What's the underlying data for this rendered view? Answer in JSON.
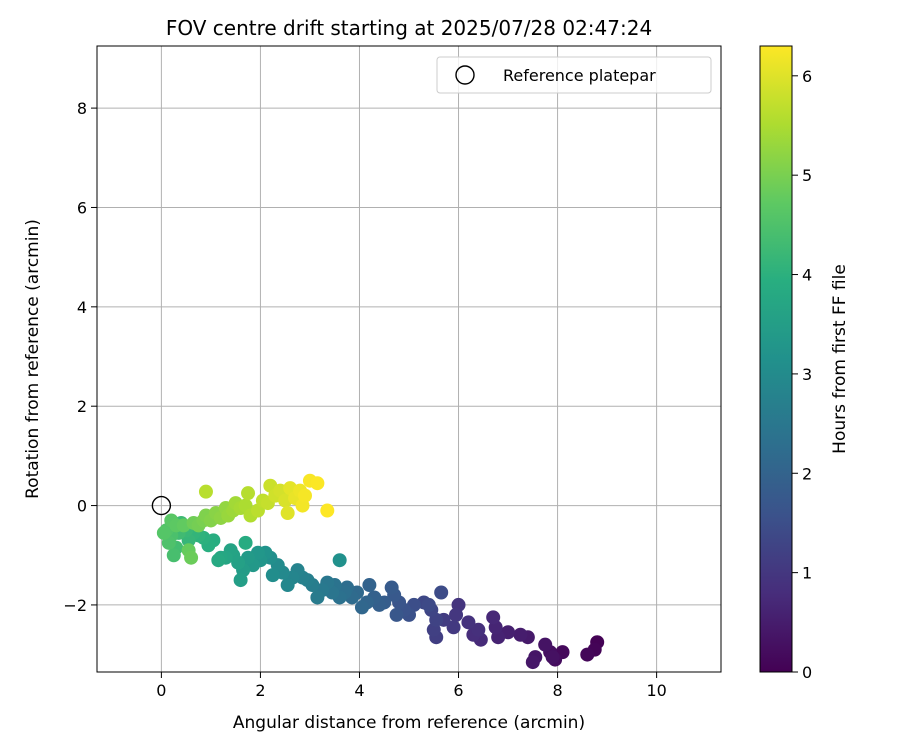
{
  "chart_data": {
    "type": "scatter",
    "title": "FOV centre drift starting at 2025/07/28 02:47:24",
    "xlabel": "Angular distance from reference (arcmin)",
    "ylabel": "Rotation from reference (arcmin)",
    "xlim": [
      -1.3,
      11.3
    ],
    "ylim": [
      -3.35,
      9.25
    ],
    "xticks": [
      0,
      2,
      4,
      6,
      8,
      10
    ],
    "xtick_labels": [
      "0",
      "2",
      "4",
      "6",
      "8",
      "10"
    ],
    "yticks": [
      -2,
      0,
      2,
      4,
      6,
      8
    ],
    "ytick_labels": [
      "−2",
      "0",
      "2",
      "4",
      "6",
      "8"
    ],
    "grid": true,
    "legend": {
      "position": "top-right",
      "entries": [
        "Reference platepar"
      ]
    },
    "reference_point": {
      "x": 0,
      "y": 0,
      "label": "Reference platepar"
    },
    "colorbar": {
      "label": "Hours from first FF file",
      "colormap": "viridis",
      "range": [
        0,
        6.3
      ],
      "ticks": [
        0,
        1,
        2,
        3,
        4,
        5,
        6
      ],
      "tick_labels": [
        "0",
        "1",
        "2",
        "3",
        "4",
        "5",
        "6"
      ]
    },
    "points": [
      {
        "x": 8.8,
        "y": -2.75,
        "t": 0.02
      },
      {
        "x": 8.75,
        "y": -2.9,
        "t": 0.06
      },
      {
        "x": 8.6,
        "y": -3.0,
        "t": 0.1
      },
      {
        "x": 8.1,
        "y": -2.95,
        "t": 0.15
      },
      {
        "x": 7.95,
        "y": -3.1,
        "t": 0.2
      },
      {
        "x": 7.85,
        "y": -2.95,
        "t": 0.24
      },
      {
        "x": 7.9,
        "y": -3.05,
        "t": 0.28
      },
      {
        "x": 7.75,
        "y": -2.8,
        "t": 0.32
      },
      {
        "x": 7.55,
        "y": -3.05,
        "t": 0.36
      },
      {
        "x": 7.5,
        "y": -3.15,
        "t": 0.4
      },
      {
        "x": 7.4,
        "y": -2.65,
        "t": 0.45
      },
      {
        "x": 7.25,
        "y": -2.6,
        "t": 0.5
      },
      {
        "x": 7.0,
        "y": -2.55,
        "t": 0.55
      },
      {
        "x": 6.8,
        "y": -2.65,
        "t": 0.6
      },
      {
        "x": 6.75,
        "y": -2.45,
        "t": 0.65
      },
      {
        "x": 6.7,
        "y": -2.25,
        "t": 0.7
      },
      {
        "x": 6.45,
        "y": -2.7,
        "t": 0.75
      },
      {
        "x": 6.3,
        "y": -2.6,
        "t": 0.8
      },
      {
        "x": 6.4,
        "y": -2.5,
        "t": 0.85
      },
      {
        "x": 6.2,
        "y": -2.35,
        "t": 0.9
      },
      {
        "x": 6.0,
        "y": -2.0,
        "t": 0.95
      },
      {
        "x": 5.95,
        "y": -2.2,
        "t": 1.0
      },
      {
        "x": 5.9,
        "y": -2.45,
        "t": 1.05
      },
      {
        "x": 5.7,
        "y": -2.3,
        "t": 1.1
      },
      {
        "x": 5.55,
        "y": -2.65,
        "t": 1.15
      },
      {
        "x": 5.5,
        "y": -2.5,
        "t": 1.2
      },
      {
        "x": 5.55,
        "y": -2.3,
        "t": 1.25
      },
      {
        "x": 5.45,
        "y": -2.1,
        "t": 1.3
      },
      {
        "x": 5.3,
        "y": -1.95,
        "t": 1.35
      },
      {
        "x": 5.4,
        "y": -2.0,
        "t": 1.4
      },
      {
        "x": 5.65,
        "y": -1.75,
        "t": 1.45
      },
      {
        "x": 5.1,
        "y": -2.0,
        "t": 1.5
      },
      {
        "x": 5.0,
        "y": -2.2,
        "t": 1.55
      },
      {
        "x": 4.9,
        "y": -2.1,
        "t": 1.6
      },
      {
        "x": 4.8,
        "y": -1.95,
        "t": 1.65
      },
      {
        "x": 4.75,
        "y": -2.2,
        "t": 1.7
      },
      {
        "x": 4.7,
        "y": -1.8,
        "t": 1.75
      },
      {
        "x": 4.65,
        "y": -1.65,
        "t": 1.8
      },
      {
        "x": 4.5,
        "y": -1.95,
        "t": 1.85
      },
      {
        "x": 4.4,
        "y": -2.0,
        "t": 1.9
      },
      {
        "x": 4.3,
        "y": -1.85,
        "t": 1.95
      },
      {
        "x": 4.2,
        "y": -1.6,
        "t": 2.0
      },
      {
        "x": 4.15,
        "y": -1.95,
        "t": 2.05
      },
      {
        "x": 4.05,
        "y": -2.05,
        "t": 2.1
      },
      {
        "x": 3.95,
        "y": -1.75,
        "t": 2.15
      },
      {
        "x": 3.85,
        "y": -1.85,
        "t": 2.2
      },
      {
        "x": 3.75,
        "y": -1.65,
        "t": 2.25
      },
      {
        "x": 3.7,
        "y": -1.75,
        "t": 2.3
      },
      {
        "x": 3.6,
        "y": -1.85,
        "t": 2.35
      },
      {
        "x": 3.5,
        "y": -1.6,
        "t": 2.4
      },
      {
        "x": 3.45,
        "y": -1.75,
        "t": 2.45
      },
      {
        "x": 3.35,
        "y": -1.55,
        "t": 2.5
      },
      {
        "x": 3.25,
        "y": -1.7,
        "t": 2.55
      },
      {
        "x": 3.15,
        "y": -1.85,
        "t": 2.6
      },
      {
        "x": 3.05,
        "y": -1.6,
        "t": 2.65
      },
      {
        "x": 2.95,
        "y": -1.5,
        "t": 2.7
      },
      {
        "x": 2.85,
        "y": -1.45,
        "t": 2.75
      },
      {
        "x": 2.75,
        "y": -1.3,
        "t": 2.8
      },
      {
        "x": 2.65,
        "y": -1.45,
        "t": 2.85
      },
      {
        "x": 2.55,
        "y": -1.6,
        "t": 2.9
      },
      {
        "x": 2.45,
        "y": -1.35,
        "t": 2.95
      },
      {
        "x": 2.35,
        "y": -1.2,
        "t": 3.0
      },
      {
        "x": 2.25,
        "y": -1.4,
        "t": 3.05
      },
      {
        "x": 2.2,
        "y": -1.05,
        "t": 3.1
      },
      {
        "x": 3.6,
        "y": -1.1,
        "t": 3.15
      },
      {
        "x": 2.1,
        "y": -0.95,
        "t": 3.2
      },
      {
        "x": 2.0,
        "y": -1.1,
        "t": 3.25
      },
      {
        "x": 1.95,
        "y": -0.95,
        "t": 3.3
      },
      {
        "x": 1.85,
        "y": -1.2,
        "t": 3.35
      },
      {
        "x": 1.75,
        "y": -1.05,
        "t": 3.4
      },
      {
        "x": 1.65,
        "y": -1.3,
        "t": 3.45
      },
      {
        "x": 1.6,
        "y": -1.5,
        "t": 3.5
      },
      {
        "x": 1.55,
        "y": -1.15,
        "t": 3.55
      },
      {
        "x": 1.45,
        "y": -1.0,
        "t": 3.6
      },
      {
        "x": 1.4,
        "y": -0.9,
        "t": 3.65
      },
      {
        "x": 1.3,
        "y": -1.05,
        "t": 3.7
      },
      {
        "x": 1.2,
        "y": -1.05,
        "t": 3.75
      },
      {
        "x": 1.15,
        "y": -1.1,
        "t": 3.8
      },
      {
        "x": 1.7,
        "y": -0.75,
        "t": 3.85
      },
      {
        "x": 1.05,
        "y": -0.7,
        "t": 3.9
      },
      {
        "x": 0.95,
        "y": -0.8,
        "t": 3.95
      },
      {
        "x": 0.85,
        "y": -0.65,
        "t": 4.0
      },
      {
        "x": 0.75,
        "y": -0.6,
        "t": 4.05
      },
      {
        "x": 0.65,
        "y": -0.55,
        "t": 4.1
      },
      {
        "x": 0.55,
        "y": -0.7,
        "t": 4.15
      },
      {
        "x": 0.5,
        "y": -0.5,
        "t": 4.2
      },
      {
        "x": 0.4,
        "y": -0.35,
        "t": 4.25
      },
      {
        "x": 0.35,
        "y": -0.55,
        "t": 4.3
      },
      {
        "x": 0.3,
        "y": -0.85,
        "t": 4.35
      },
      {
        "x": 0.25,
        "y": -1.0,
        "t": 4.4
      },
      {
        "x": 0.2,
        "y": -0.6,
        "t": 4.45
      },
      {
        "x": 0.15,
        "y": -0.75,
        "t": 4.5
      },
      {
        "x": 0.1,
        "y": -0.5,
        "t": 4.55
      },
      {
        "x": 0.05,
        "y": -0.55,
        "t": 4.6
      },
      {
        "x": 0.2,
        "y": -0.3,
        "t": 4.65
      },
      {
        "x": 0.3,
        "y": -0.4,
        "t": 4.7
      },
      {
        "x": 0.45,
        "y": -0.4,
        "t": 4.75
      },
      {
        "x": 0.55,
        "y": -0.9,
        "t": 4.8
      },
      {
        "x": 0.6,
        "y": -1.05,
        "t": 4.85
      },
      {
        "x": 0.65,
        "y": -0.35,
        "t": 4.9
      },
      {
        "x": 0.75,
        "y": -0.4,
        "t": 4.95
      },
      {
        "x": 0.85,
        "y": -0.3,
        "t": 5.0
      },
      {
        "x": 0.9,
        "y": -0.2,
        "t": 5.05
      },
      {
        "x": 1.0,
        "y": -0.3,
        "t": 5.1
      },
      {
        "x": 1.1,
        "y": -0.15,
        "t": 5.15
      },
      {
        "x": 1.2,
        "y": -0.25,
        "t": 5.2
      },
      {
        "x": 1.3,
        "y": -0.05,
        "t": 5.25
      },
      {
        "x": 1.35,
        "y": -0.2,
        "t": 5.3
      },
      {
        "x": 1.45,
        "y": -0.1,
        "t": 5.35
      },
      {
        "x": 1.5,
        "y": 0.05,
        "t": 5.4
      },
      {
        "x": 1.6,
        "y": -0.05,
        "t": 5.45
      },
      {
        "x": 1.7,
        "y": 0.0,
        "t": 5.5
      },
      {
        "x": 1.8,
        "y": -0.2,
        "t": 5.55
      },
      {
        "x": 1.75,
        "y": 0.25,
        "t": 5.6
      },
      {
        "x": 0.9,
        "y": 0.28,
        "t": 5.62
      },
      {
        "x": 1.95,
        "y": -0.1,
        "t": 5.65
      },
      {
        "x": 2.05,
        "y": 0.1,
        "t": 5.7
      },
      {
        "x": 2.15,
        "y": 0.05,
        "t": 5.75
      },
      {
        "x": 2.2,
        "y": 0.4,
        "t": 5.8
      },
      {
        "x": 2.3,
        "y": 0.2,
        "t": 5.85
      },
      {
        "x": 2.4,
        "y": 0.3,
        "t": 5.9
      },
      {
        "x": 2.5,
        "y": 0.1,
        "t": 5.95
      },
      {
        "x": 2.55,
        "y": -0.15,
        "t": 6.0
      },
      {
        "x": 2.6,
        "y": 0.35,
        "t": 6.05
      },
      {
        "x": 2.7,
        "y": 0.15,
        "t": 6.1
      },
      {
        "x": 2.8,
        "y": 0.3,
        "t": 6.15
      },
      {
        "x": 2.85,
        "y": 0.0,
        "t": 6.2
      },
      {
        "x": 2.9,
        "y": 0.2,
        "t": 6.22
      },
      {
        "x": 3.0,
        "y": 0.5,
        "t": 6.25
      },
      {
        "x": 3.15,
        "y": 0.45,
        "t": 6.28
      },
      {
        "x": 3.35,
        "y": -0.1,
        "t": 6.3
      }
    ]
  }
}
